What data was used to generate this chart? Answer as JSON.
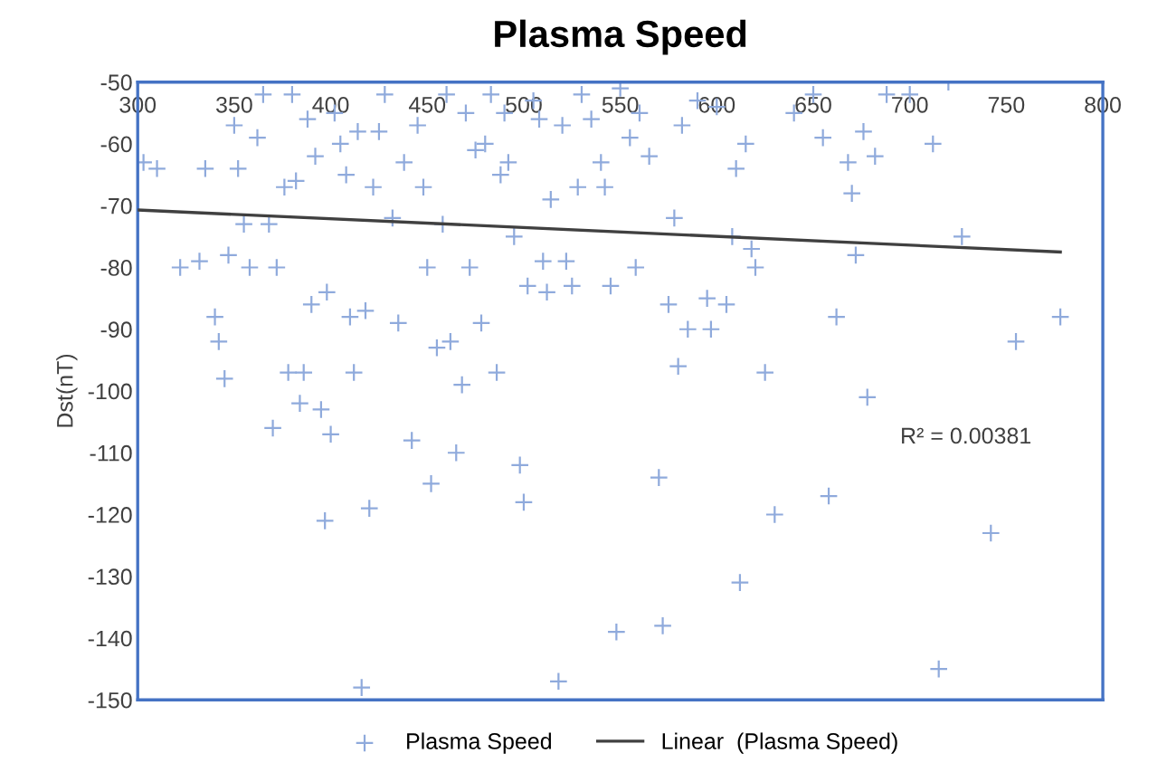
{
  "chart_data": {
    "type": "scatter",
    "title": "Plasma Speed",
    "ylabel": "Dst(nT)",
    "xlim": [
      300,
      800
    ],
    "xticks": [
      300,
      350,
      400,
      450,
      500,
      550,
      600,
      650,
      700,
      750,
      800
    ],
    "ylim": [
      -150,
      -50
    ],
    "yticks": [
      -150,
      -140,
      -130,
      -120,
      -110,
      -100,
      -90,
      -80,
      -70,
      -60,
      -50
    ],
    "grid": false,
    "legend": "bottom",
    "marker": "cross",
    "annotations": [
      "R² = 0.00381"
    ],
    "series": [
      {
        "name": "Plasma Speed",
        "color": "#8faadc",
        "x": [
          303,
          310,
          322,
          332,
          335,
          340,
          342,
          345,
          347,
          350,
          352,
          355,
          358,
          362,
          365,
          368,
          370,
          372,
          376,
          378,
          380,
          382,
          384,
          386,
          388,
          390,
          392,
          395,
          397,
          398,
          400,
          402,
          405,
          408,
          410,
          412,
          414,
          416,
          418,
          420,
          422,
          425,
          428,
          432,
          435,
          438,
          442,
          445,
          448,
          450,
          452,
          455,
          458,
          460,
          462,
          465,
          468,
          470,
          472,
          475,
          478,
          480,
          483,
          486,
          488,
          490,
          492,
          495,
          498,
          500,
          502,
          505,
          508,
          510,
          512,
          514,
          518,
          520,
          522,
          525,
          528,
          530,
          535,
          540,
          542,
          545,
          548,
          550,
          555,
          558,
          560,
          565,
          570,
          572,
          575,
          578,
          580,
          582,
          585,
          590,
          595,
          597,
          600,
          605,
          608,
          610,
          612,
          615,
          618,
          620,
          625,
          630,
          640,
          650,
          655,
          658,
          662,
          668,
          670,
          672,
          676,
          678,
          682,
          688,
          700,
          712,
          715,
          720,
          727,
          742,
          755,
          778
        ],
        "values": [
          -63,
          -64,
          -80,
          -79,
          -64,
          -88,
          -92,
          -98,
          -78,
          -57,
          -64,
          -73,
          -80,
          -59,
          -52,
          -73,
          -106,
          -80,
          -67,
          -97,
          -52,
          -66,
          -102,
          -97,
          -56,
          -86,
          -62,
          -103,
          -121,
          -84,
          -107,
          -55,
          -60,
          -65,
          -88,
          -97,
          -58,
          -148,
          -87,
          -119,
          -67,
          -58,
          -52,
          -72,
          -89,
          -63,
          -108,
          -57,
          -67,
          -80,
          -115,
          -93,
          -73,
          -52,
          -92,
          -110,
          -99,
          -55,
          -80,
          -61,
          -89,
          -60,
          -52,
          -97,
          -65,
          -55,
          -63,
          -75,
          -112,
          -118,
          -83,
          -53,
          -56,
          -79,
          -84,
          -69,
          -147,
          -57,
          -79,
          -83,
          -67,
          -52,
          -56,
          -63,
          -67,
          -83,
          -139,
          -51,
          -59,
          -80,
          -55,
          -62,
          -114,
          -138,
          -86,
          -72,
          -96,
          -57,
          -90,
          -53,
          -85,
          -90,
          -54,
          -86,
          -75,
          -64,
          -131,
          -60,
          -77,
          -80,
          -97,
          -120,
          -55,
          -52,
          -59,
          -117,
          -88,
          -63,
          -68,
          -78,
          -58,
          -101,
          -62,
          -52,
          -52,
          -60,
          -145,
          -50,
          -75,
          -123,
          -92,
          -88
        ]
      },
      {
        "name": "Linear  (Plasma Speed)",
        "type": "line",
        "color": "#404040",
        "line_style": "solid",
        "marker": "none",
        "x": [
          300,
          778
        ],
        "values": [
          -70.7,
          -77.5
        ]
      }
    ]
  }
}
